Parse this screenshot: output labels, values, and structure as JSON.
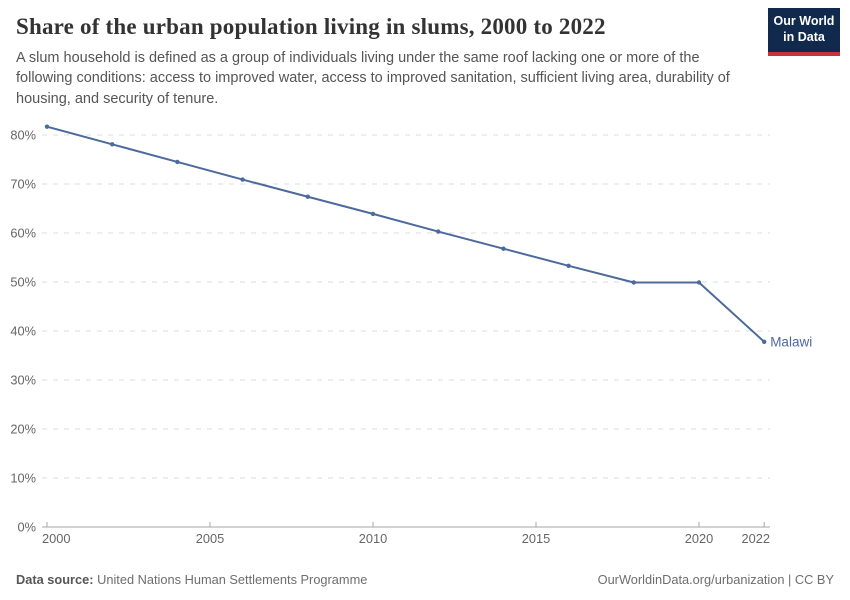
{
  "header": {
    "title": "Share of the urban population living in slums, 2000 to 2022",
    "subtitle": "A slum household is defined as a group of individuals living under the same roof lacking one or more of the following conditions: access to improved water, access to improved sanitation, sufficient living area, durability of housing, and security of tenure.",
    "logo": {
      "line1": "Our World",
      "line2": "in Data"
    }
  },
  "chart_data": {
    "type": "line",
    "title": "Share of the urban population living in slums, 2000 to 2022",
    "x": [
      2000,
      2002,
      2004,
      2006,
      2008,
      2010,
      2012,
      2014,
      2016,
      2018,
      2020,
      2022
    ],
    "series": [
      {
        "name": "Malawi",
        "values": [
          81.7,
          78.1,
          74.5,
          70.9,
          67.4,
          63.9,
          60.3,
          56.8,
          53.3,
          49.9,
          49.9,
          37.8
        ]
      }
    ],
    "unit": "%",
    "xlabel": "",
    "ylabel": "",
    "ylim": [
      0,
      80
    ],
    "xlim": [
      2000,
      2022
    ],
    "yticks": [
      0,
      10,
      20,
      30,
      40,
      50,
      60,
      70,
      80
    ],
    "xticks": [
      2000,
      2005,
      2010,
      2015,
      2020,
      2022
    ],
    "grid": "horizontal-dashed",
    "legend_position": "end-of-line-label",
    "markers": true,
    "colors": {
      "line": "#4c6a9c",
      "grid": "#dcdcdc",
      "axis": "#a5a5a5",
      "tick_text": "#666666"
    }
  },
  "footer": {
    "source_label": "Data source:",
    "source_value": "United Nations Human Settlements Programme",
    "credit": "OurWorldinData.org/urbanization | CC BY"
  }
}
